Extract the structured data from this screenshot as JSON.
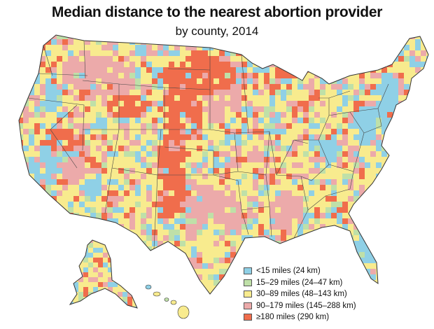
{
  "title": "Median distance to the nearest abortion provider",
  "subtitle": "by county, 2014",
  "palette": {
    "c1": "#8fd0e6",
    "c2": "#bfe0a8",
    "c3": "#f8eb8e",
    "c4": "#ecaaaa",
    "c5": "#f06d4c",
    "border": "#333333"
  },
  "legend": [
    {
      "label": "<15 miles (24 km)",
      "color": "#8fd0e6"
    },
    {
      "label": "15–29 miles (24–47 km)",
      "color": "#bfe0a8"
    },
    {
      "label": "30–89 miles (48–143 km)",
      "color": "#f8eb8e"
    },
    {
      "label": "90–179 miles (145–288 km)",
      "color": "#ecaaaa"
    },
    {
      "label": "≥180 miles (290 km)",
      "color": "#f06d4c"
    }
  ]
}
